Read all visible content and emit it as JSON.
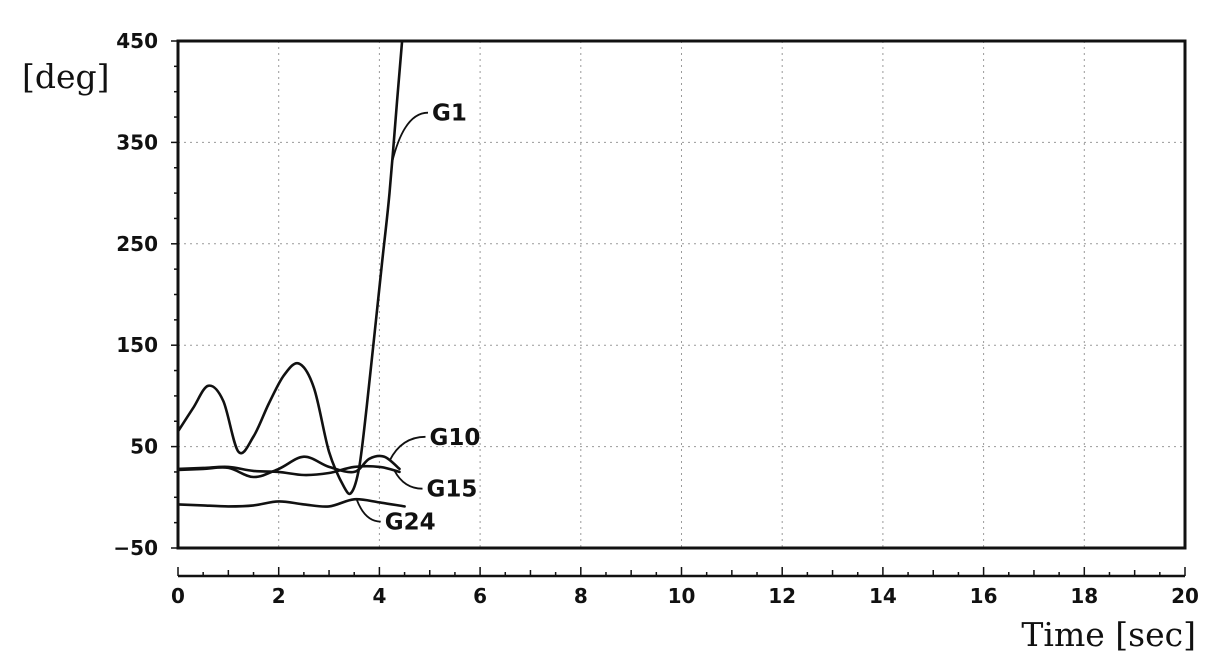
{
  "chart_data": {
    "type": "line",
    "title": "",
    "xlabel": "Time [sec]",
    "ylabel": "[deg]",
    "xlim": [
      0,
      20
    ],
    "ylim": [
      -50,
      450
    ],
    "xticks": [
      0,
      2,
      4,
      6,
      8,
      10,
      12,
      14,
      16,
      18,
      20
    ],
    "yticks": [
      -50,
      50,
      150,
      250,
      350,
      450
    ],
    "grid": true,
    "legend": "none",
    "series": [
      {
        "name": "G1",
        "x": [
          0,
          0.3,
          0.6,
          0.9,
          1.2,
          1.5,
          1.8,
          2.1,
          2.4,
          2.7,
          3.0,
          3.3,
          3.45,
          3.6,
          3.75,
          3.9,
          4.05,
          4.2,
          4.35,
          4.45
        ],
        "y": [
          65,
          88,
          110,
          95,
          45,
          60,
          92,
          120,
          132,
          108,
          45,
          10,
          5,
          30,
          90,
          160,
          230,
          300,
          390,
          450
        ]
      },
      {
        "name": "G10",
        "x": [
          0,
          0.5,
          1.0,
          1.5,
          2.0,
          2.5,
          3.0,
          3.5,
          3.8,
          4.1,
          4.4
        ],
        "y": [
          27,
          28,
          29,
          20,
          28,
          40,
          30,
          25,
          38,
          40,
          28
        ]
      },
      {
        "name": "G15",
        "x": [
          0,
          0.5,
          1.0,
          1.5,
          2.0,
          2.5,
          3.0,
          3.5,
          4.0,
          4.4
        ],
        "y": [
          28,
          29,
          30,
          26,
          25,
          22,
          24,
          30,
          30,
          25
        ]
      },
      {
        "name": "G24",
        "x": [
          0,
          0.5,
          1.0,
          1.5,
          2.0,
          2.5,
          3.0,
          3.5,
          4.0,
          4.5
        ],
        "y": [
          -7,
          -8,
          -9,
          -8,
          -4,
          -7,
          -9,
          -2,
          -5,
          -9
        ]
      }
    ],
    "annotations": [
      {
        "text": "G1",
        "series": "G1",
        "at_x": 4.25
      },
      {
        "text": "G10",
        "series": "G10",
        "at_x": 4.2
      },
      {
        "text": "G15",
        "series": "G15",
        "at_x": 4.3
      },
      {
        "text": "G24",
        "series": "G24",
        "at_x": 3.55
      }
    ]
  }
}
